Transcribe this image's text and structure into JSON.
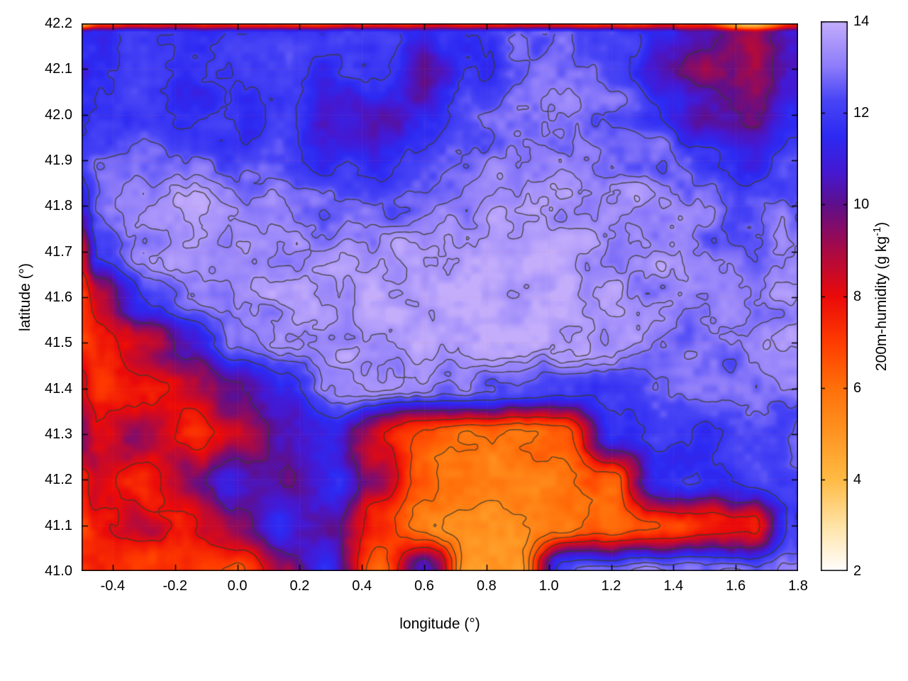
{
  "chart_data": {
    "type": "heatmap",
    "title": "",
    "xlabel": "longitude (°)",
    "ylabel": "latitude (°)",
    "colorbar_label": "200m-humidity (g kg⁻¹)",
    "colorbar_label_parts": {
      "prefix": "200m-humidity (g kg",
      "sup": "-1",
      "suffix": ")"
    },
    "xlim": [
      -0.5,
      1.8
    ],
    "ylim": [
      41.0,
      42.2
    ],
    "zlim": [
      2,
      14
    ],
    "grid": true,
    "legend_position": "right-colorbar",
    "x_ticks": [
      "-0.4",
      "-0.2",
      "0.0",
      "0.2",
      "0.4",
      "0.6",
      "0.8",
      "1.0",
      "1.2",
      "1.4",
      "1.6",
      "1.8"
    ],
    "y_ticks": [
      "41.0",
      "41.1",
      "41.2",
      "41.3",
      "41.4",
      "41.5",
      "41.6",
      "41.7",
      "41.8",
      "41.9",
      "42.0",
      "42.1",
      "42.2"
    ],
    "cb_ticks": [
      "2",
      "4",
      "6",
      "8",
      "10",
      "12",
      "14"
    ],
    "palette": [
      [
        2,
        "#ffffff"
      ],
      [
        3,
        "#ffe3a5"
      ],
      [
        4,
        "#ffbb44"
      ],
      [
        5,
        "#ff9522"
      ],
      [
        6,
        "#ff700a"
      ],
      [
        7,
        "#ff3c00"
      ],
      [
        8,
        "#eb0a0a"
      ],
      [
        9,
        "#aa0a46"
      ],
      [
        10,
        "#5f0f8c"
      ],
      [
        10.7,
        "#4619d2"
      ],
      [
        11.5,
        "#2d2af3"
      ],
      [
        12.3,
        "#4a46f6"
      ],
      [
        13,
        "#8c7bfa"
      ],
      [
        14,
        "#c4aefc"
      ]
    ],
    "contour_color": "#3c3a2a",
    "contour_levels": [
      5.3,
      6.0,
      6.8,
      8.0,
      10.0,
      11.8,
      12.6,
      13.0,
      13.3,
      13.55
    ],
    "field": {
      "lons": [
        -0.5,
        -0.45,
        -0.3,
        -0.15,
        0.0,
        0.15,
        0.3,
        0.45,
        0.6,
        0.75,
        0.9,
        1.05,
        1.2,
        1.35,
        1.5,
        1.65,
        1.78
      ],
      "lats": [
        42.2,
        42.18,
        42.1,
        42.0,
        41.9,
        41.8,
        41.7,
        41.6,
        41.5,
        41.4,
        41.3,
        41.2,
        41.1,
        41.0
      ],
      "values": [
        [
          5.0,
          7.0,
          7.2,
          7.2,
          7.2,
          7.2,
          7.2,
          7.2,
          7.2,
          7.2,
          7.2,
          7.2,
          7.2,
          7.2,
          7.2,
          3.5,
          7.2
        ],
        [
          11.5,
          11.6,
          11.8,
          11.6,
          11.7,
          11.9,
          12.0,
          12.1,
          11.2,
          11.9,
          12.4,
          12.6,
          12.4,
          11.4,
          10.2,
          9.4,
          11.0
        ],
        [
          11.5,
          11.7,
          11.9,
          11.6,
          11.8,
          12.0,
          11.6,
          12.0,
          10.4,
          11.8,
          12.5,
          12.7,
          12.3,
          10.6,
          9.6,
          9.2,
          10.8
        ],
        [
          11.8,
          12.0,
          12.1,
          11.7,
          11.6,
          11.9,
          10.6,
          10.2,
          11.0,
          12.3,
          12.9,
          13.0,
          12.7,
          12.0,
          10.4,
          9.8,
          11.4
        ],
        [
          12.0,
          12.4,
          12.9,
          12.6,
          12.3,
          12.0,
          11.6,
          11.4,
          11.9,
          12.7,
          13.1,
          13.2,
          13.1,
          12.8,
          12.2,
          11.0,
          12.2
        ],
        [
          11.2,
          12.6,
          13.3,
          13.4,
          13.2,
          13.0,
          12.7,
          12.6,
          12.9,
          13.3,
          13.5,
          13.5,
          13.4,
          13.3,
          12.9,
          12.4,
          12.7
        ],
        [
          8.8,
          12.0,
          13.2,
          13.5,
          13.6,
          13.5,
          13.4,
          13.5,
          13.6,
          13.7,
          13.7,
          13.6,
          13.5,
          13.3,
          13.0,
          12.7,
          12.9
        ],
        [
          7.3,
          8.8,
          11.8,
          13.0,
          13.5,
          13.6,
          13.7,
          13.7,
          13.7,
          13.8,
          13.8,
          13.7,
          13.5,
          13.3,
          13.1,
          13.0,
          13.3
        ],
        [
          7.0,
          7.4,
          8.8,
          10.5,
          12.6,
          13.4,
          13.6,
          13.7,
          13.7,
          13.7,
          13.7,
          13.6,
          13.4,
          13.1,
          12.9,
          13.0,
          13.2
        ],
        [
          8.2,
          7.3,
          7.6,
          8.6,
          9.8,
          11.2,
          12.9,
          13.2,
          13.1,
          12.9,
          12.6,
          12.2,
          12.1,
          12.4,
          12.6,
          12.6,
          12.9
        ],
        [
          9.6,
          8.2,
          9.4,
          7.6,
          8.8,
          10.6,
          11.4,
          8.2,
          6.6,
          6.1,
          6.0,
          6.4,
          11.2,
          12.0,
          11.7,
          12.2,
          12.7
        ],
        [
          7.6,
          8.8,
          7.2,
          9.6,
          10.8,
          9.8,
          11.6,
          9.0,
          6.2,
          5.6,
          5.4,
          5.8,
          6.4,
          11.4,
          11.8,
          12.2,
          12.6
        ],
        [
          7.2,
          7.6,
          8.4,
          7.8,
          9.6,
          11.2,
          10.4,
          7.2,
          5.6,
          4.9,
          5.2,
          5.6,
          6.2,
          6.8,
          7.2,
          7.6,
          11.8
        ],
        [
          7.4,
          7.8,
          7.0,
          7.4,
          6.6,
          9.0,
          11.2,
          6.2,
          10.8,
          4.6,
          5.2,
          12.6,
          12.9,
          13.0,
          13.0,
          13.0,
          13.1
        ]
      ]
    }
  }
}
